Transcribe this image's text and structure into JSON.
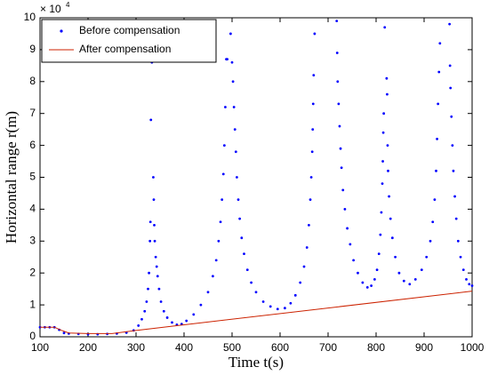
{
  "chart_data": {
    "type": "scatter",
    "xlabel": "Time t(s)",
    "ylabel": "Horizontal range r(m)",
    "yscale_label": {
      "base": "× 10",
      "exponent": "4"
    },
    "xlim": [
      100,
      1000
    ],
    "ylim": [
      0,
      10
    ],
    "xticks": [
      100,
      200,
      300,
      400,
      500,
      600,
      700,
      800,
      900,
      1000
    ],
    "yticks": [
      0,
      1,
      2,
      3,
      4,
      5,
      6,
      7,
      8,
      9,
      10
    ],
    "legend": "upper left",
    "series": [
      {
        "name": "Before compensation",
        "color": "#0000ff",
        "mode": "markers",
        "x": [
          100,
          110,
          120,
          130,
          140,
          150,
          160,
          180,
          200,
          220,
          240,
          260,
          280,
          295,
          305,
          312,
          318,
          322,
          325,
          327,
          329,
          330,
          331,
          333,
          336,
          337,
          338,
          339,
          341,
          343,
          345,
          348,
          352,
          358,
          365,
          375,
          385,
          395,
          405,
          420,
          435,
          450,
          460,
          467,
          472,
          476,
          479,
          482,
          484,
          486,
          488,
          490,
          497,
          500,
          502,
          504,
          506,
          508,
          510,
          513,
          516,
          520,
          525,
          532,
          540,
          550,
          565,
          580,
          595,
          610,
          622,
          632,
          642,
          650,
          656,
          660,
          663,
          665,
          667,
          668,
          669,
          670,
          672,
          718,
          719,
          720,
          722,
          724,
          726,
          728,
          731,
          735,
          740,
          746,
          753,
          762,
          772,
          782,
          790,
          797,
          802,
          806,
          809,
          811,
          813,
          814,
          815,
          816,
          818,
          822,
          823,
          824,
          825,
          827,
          830,
          834,
          840,
          848,
          858,
          870,
          882,
          895,
          905,
          913,
          918,
          922,
          925,
          927,
          929,
          931,
          933,
          953,
          954,
          955,
          957,
          959,
          961,
          964,
          967,
          971,
          976,
          982,
          988,
          994,
          1000
        ],
        "values": [
          0.3,
          0.3,
          0.3,
          0.3,
          0.22,
          0.12,
          0.1,
          0.09,
          0.08,
          0.08,
          0.09,
          0.1,
          0.13,
          0.2,
          0.35,
          0.55,
          0.8,
          1.1,
          1.5,
          2.0,
          3.0,
          3.6,
          6.8,
          8.6,
          5.0,
          4.3,
          3.5,
          3.0,
          2.5,
          2.2,
          1.9,
          1.5,
          1.1,
          0.8,
          0.6,
          0.45,
          0.38,
          0.4,
          0.5,
          0.7,
          1.0,
          1.4,
          1.9,
          2.4,
          3.0,
          3.6,
          4.3,
          5.1,
          6.0,
          7.2,
          8.7,
          8.7,
          9.5,
          8.6,
          8.0,
          7.2,
          6.5,
          5.8,
          5.0,
          4.3,
          3.7,
          3.1,
          2.6,
          2.1,
          1.7,
          1.4,
          1.1,
          0.95,
          0.87,
          0.9,
          1.05,
          1.3,
          1.7,
          2.2,
          2.8,
          3.5,
          4.3,
          5.0,
          5.8,
          6.5,
          7.3,
          8.2,
          9.5,
          9.9,
          8.9,
          8.0,
          7.3,
          6.6,
          5.9,
          5.3,
          4.6,
          4.0,
          3.4,
          2.9,
          2.4,
          2.0,
          1.7,
          1.55,
          1.6,
          1.8,
          2.1,
          2.6,
          3.2,
          3.9,
          4.8,
          5.5,
          6.4,
          7.0,
          9.7,
          8.1,
          7.6,
          6.0,
          5.2,
          4.4,
          3.7,
          3.1,
          2.5,
          2.0,
          1.75,
          1.65,
          1.8,
          2.1,
          2.5,
          3.0,
          3.6,
          4.3,
          5.2,
          6.2,
          7.3,
          8.3,
          9.2,
          9.8,
          8.5,
          7.8,
          6.9,
          6.0,
          5.2,
          4.4,
          3.7,
          3.0,
          2.5,
          2.1,
          1.8,
          1.65,
          1.6
        ]
      },
      {
        "name": "After compensation",
        "color": "#cc2200",
        "mode": "line",
        "x": [
          100,
          130,
          145,
          160,
          200,
          250,
          300,
          1000
        ],
        "values": [
          0.3,
          0.3,
          0.2,
          0.12,
          0.1,
          0.1,
          0.2,
          1.43
        ]
      }
    ]
  }
}
